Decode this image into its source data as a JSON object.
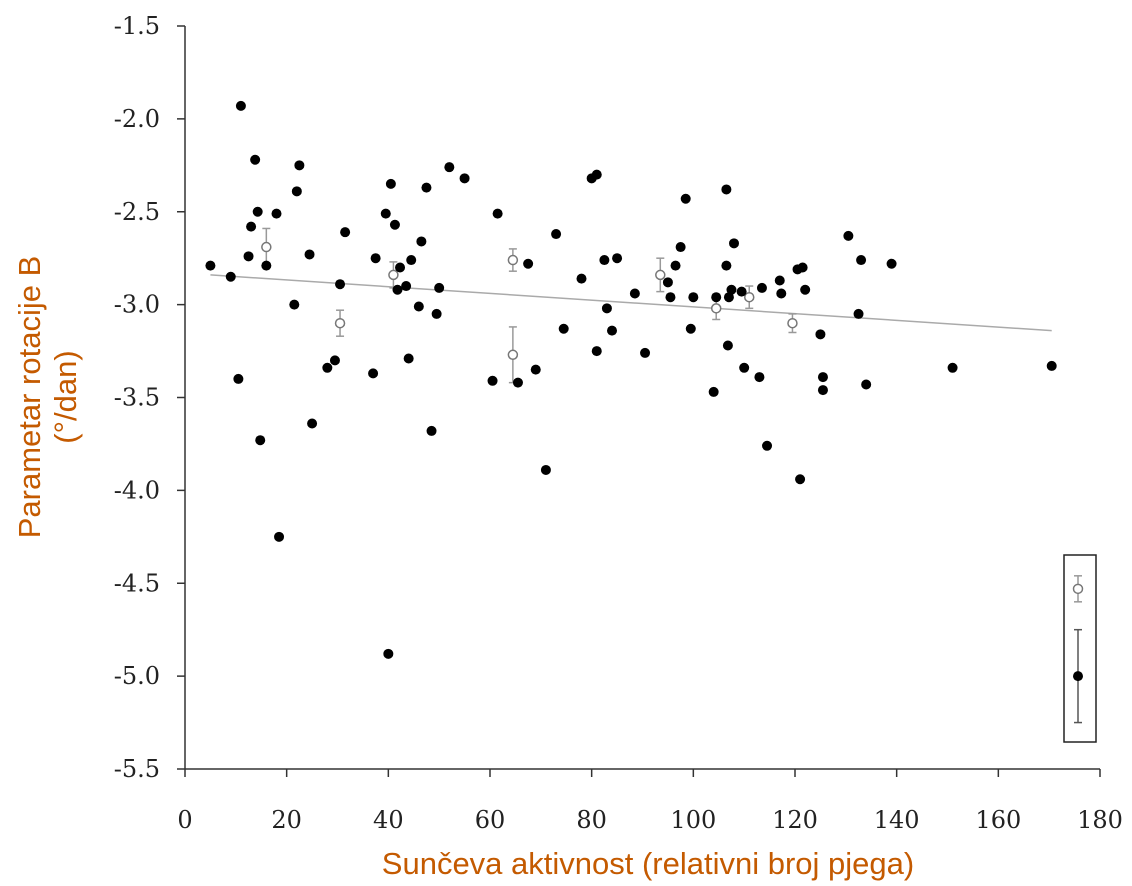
{
  "chart_data": {
    "type": "scatter",
    "xlabel": "Sunčeva aktivnost (relativni broj pjega)",
    "ylabel_line1": "Parametar rotacije B",
    "ylabel_line2": "(°/dan)",
    "xlim": [
      0,
      180
    ],
    "ylim": [
      -5.5,
      -1.5
    ],
    "x_ticks": [
      0,
      20,
      40,
      60,
      80,
      100,
      120,
      140,
      160,
      180
    ],
    "y_ticks": [
      -1.5,
      -2.0,
      -2.5,
      -3.0,
      -3.5,
      -4.0,
      -4.5,
      -5.0,
      -5.5
    ],
    "x_tick_labels": [
      "0",
      "20",
      "40",
      "60",
      "80",
      "100",
      "120",
      "140",
      "160",
      "180"
    ],
    "y_tick_labels": [
      "-1.5",
      "-2.0",
      "-2.5",
      "-3.0",
      "-3.5",
      "-4.0",
      "-4.5",
      "-5.0",
      "-5.5"
    ],
    "grid": false,
    "legend_position": "bottom-right",
    "series": [
      {
        "marker": "filled-circle",
        "color": "#000000",
        "points": [
          [
            5,
            -2.79
          ],
          [
            9,
            -2.85
          ],
          [
            10.5,
            -3.4
          ],
          [
            11,
            -1.93
          ],
          [
            12.5,
            -2.74
          ],
          [
            13,
            -2.58
          ],
          [
            13.8,
            -2.22
          ],
          [
            14.3,
            -2.5
          ],
          [
            14.8,
            -3.73
          ],
          [
            16,
            -2.79
          ],
          [
            18,
            -2.51
          ],
          [
            18.5,
            -4.25
          ],
          [
            21.5,
            -3.0
          ],
          [
            22,
            -2.39
          ],
          [
            22.5,
            -2.25
          ],
          [
            24.5,
            -2.73
          ],
          [
            25,
            -3.64
          ],
          [
            28,
            -3.34
          ],
          [
            29.5,
            -3.3
          ],
          [
            30.5,
            -2.89
          ],
          [
            31.5,
            -2.61
          ],
          [
            37,
            -3.37
          ],
          [
            37.5,
            -2.75
          ],
          [
            39.5,
            -2.51
          ],
          [
            40,
            -4.88
          ],
          [
            40.5,
            -2.35
          ],
          [
            41.3,
            -2.57
          ],
          [
            41.8,
            -2.92
          ],
          [
            42.3,
            -2.8
          ],
          [
            43.5,
            -2.9
          ],
          [
            44,
            -3.29
          ],
          [
            44.5,
            -2.76
          ],
          [
            46,
            -3.01
          ],
          [
            46.5,
            -2.66
          ],
          [
            47.5,
            -2.37
          ],
          [
            48.5,
            -3.68
          ],
          [
            49.5,
            -3.05
          ],
          [
            50,
            -2.91
          ],
          [
            52,
            -2.26
          ],
          [
            55,
            -2.32
          ],
          [
            60.5,
            -3.41
          ],
          [
            61.5,
            -2.51
          ],
          [
            65.5,
            -3.42
          ],
          [
            67.5,
            -2.78
          ],
          [
            69,
            -3.35
          ],
          [
            71,
            -3.89
          ],
          [
            73,
            -2.62
          ],
          [
            74.5,
            -3.13
          ],
          [
            78,
            -2.86
          ],
          [
            80,
            -2.32
          ],
          [
            81,
            -2.3
          ],
          [
            81,
            -3.25
          ],
          [
            82.5,
            -2.76
          ],
          [
            83,
            -3.02
          ],
          [
            84,
            -3.14
          ],
          [
            85,
            -2.75
          ],
          [
            88.5,
            -2.94
          ],
          [
            90.5,
            -3.26
          ],
          [
            95,
            -2.88
          ],
          [
            95.5,
            -2.96
          ],
          [
            96.5,
            -2.79
          ],
          [
            97.5,
            -2.69
          ],
          [
            98.5,
            -2.43
          ],
          [
            99.5,
            -3.13
          ],
          [
            100,
            -2.96
          ],
          [
            104,
            -3.47
          ],
          [
            104.5,
            -2.96
          ],
          [
            106.5,
            -2.79
          ],
          [
            106.5,
            -2.38
          ],
          [
            106.8,
            -3.22
          ],
          [
            107,
            -2.96
          ],
          [
            107.5,
            -2.92
          ],
          [
            108,
            -2.67
          ],
          [
            109.5,
            -2.93
          ],
          [
            110,
            -3.34
          ],
          [
            113,
            -3.39
          ],
          [
            113.5,
            -2.91
          ],
          [
            114.5,
            -3.76
          ],
          [
            117,
            -2.87
          ],
          [
            117.3,
            -2.94
          ],
          [
            120.5,
            -2.81
          ],
          [
            121,
            -3.94
          ],
          [
            121.5,
            -2.8
          ],
          [
            122,
            -2.92
          ],
          [
            125,
            -3.16
          ],
          [
            125.5,
            -3.39
          ],
          [
            125.5,
            -3.46
          ],
          [
            130.5,
            -2.63
          ],
          [
            132.5,
            -3.05
          ],
          [
            133,
            -2.76
          ],
          [
            134,
            -3.43
          ],
          [
            139,
            -2.78
          ],
          [
            151,
            -3.34
          ],
          [
            170.5,
            -3.33
          ]
        ]
      },
      {
        "marker": "open-circle",
        "color": "#888888",
        "points": [
          [
            16,
            -2.69,
            0.1
          ],
          [
            30.5,
            -3.1,
            0.07
          ],
          [
            41,
            -2.84,
            0.07
          ],
          [
            64.5,
            -3.27,
            0.15
          ],
          [
            64.5,
            -2.76,
            0.06
          ],
          [
            93.5,
            -2.84,
            0.09
          ],
          [
            104.5,
            -3.02,
            0.06
          ],
          [
            111,
            -2.96,
            0.06
          ],
          [
            119.5,
            -3.1,
            0.05
          ]
        ]
      }
    ],
    "trendline": {
      "x": [
        5,
        170.5
      ],
      "y": [
        -2.84,
        -3.14
      ]
    },
    "legend": {
      "items": [
        {
          "marker": "open-circle",
          "error_half_height": 0.07
        },
        {
          "marker": "filled-circle",
          "error_half_height": 0.25
        }
      ]
    }
  }
}
